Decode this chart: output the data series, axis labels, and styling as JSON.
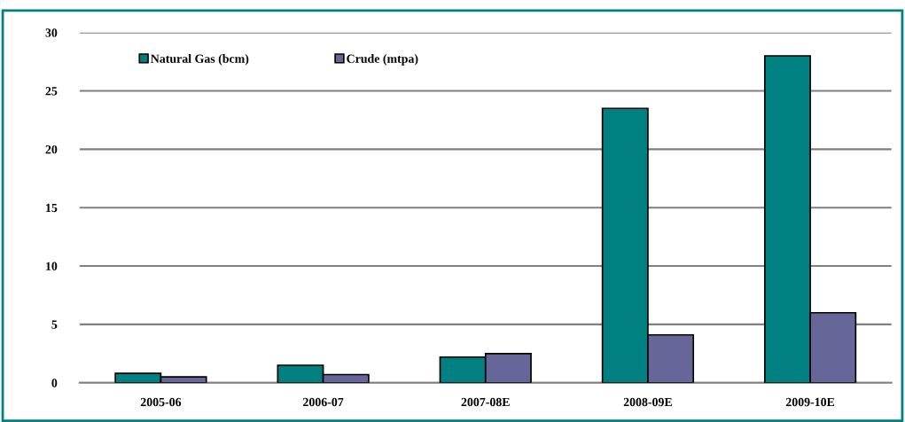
{
  "chart_data": {
    "type": "bar",
    "categories": [
      "2005-06",
      "2006-07",
      "2007-08E",
      "2008-09E",
      "2009-10E"
    ],
    "series": [
      {
        "name": "Natural Gas (bcm)",
        "color": "#008080",
        "values": [
          0.8,
          1.5,
          2.2,
          23.5,
          28
        ]
      },
      {
        "name": "Crude (mtpa)",
        "color": "#666699",
        "values": [
          0.5,
          0.7,
          2.5,
          4.1,
          6
        ]
      }
    ],
    "ylim": [
      0,
      30
    ],
    "yticks": [
      0,
      5,
      10,
      15,
      20,
      25,
      30
    ],
    "grid": "y",
    "legend": "top left"
  }
}
